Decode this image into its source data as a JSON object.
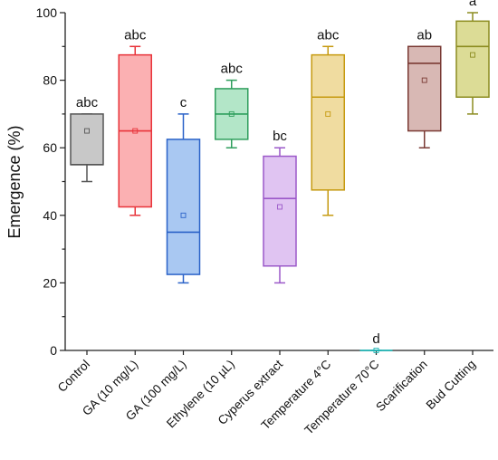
{
  "chart_data": {
    "type": "box",
    "ylabel": "Emergence (%)",
    "ylim": [
      0,
      100
    ],
    "yticks": [
      0,
      20,
      40,
      60,
      80,
      100
    ],
    "categories": [
      "Control",
      "GA (10 mg/L)",
      "GA (100 mg/L)",
      "Ethylene (10 µL)",
      "Cyperus extract",
      "Temperature 4°C",
      "Temperature 70°C",
      "Scarification",
      "Bud Cutting"
    ],
    "boxes": [
      {
        "min": 50,
        "q1": 55,
        "median": 55,
        "q3": 70,
        "max": 70,
        "mean": 65,
        "letter": "abc",
        "fill": "#c8c8c8",
        "stroke": "#555555"
      },
      {
        "min": 40,
        "q1": 42.5,
        "median": 65,
        "q3": 87.5,
        "max": 90,
        "mean": 65,
        "letter": "abc",
        "fill": "#fbb0b2",
        "stroke": "#e8333a"
      },
      {
        "min": 20,
        "q1": 22.5,
        "median": 35,
        "q3": 62.5,
        "max": 70,
        "mean": 40,
        "letter": "c",
        "fill": "#a9c8f2",
        "stroke": "#2a62c8"
      },
      {
        "min": 60,
        "q1": 62.5,
        "median": 70,
        "q3": 77.5,
        "max": 80,
        "mean": 70,
        "letter": "abc",
        "fill": "#b3e6c8",
        "stroke": "#2e9e5c"
      },
      {
        "min": 20,
        "q1": 25,
        "median": 45,
        "q3": 57.5,
        "max": 60,
        "mean": 42.5,
        "letter": "bc",
        "fill": "#e0c4f2",
        "stroke": "#9b59c9"
      },
      {
        "min": 40,
        "q1": 47.5,
        "median": 75,
        "q3": 87.5,
        "max": 90,
        "mean": 70,
        "letter": "abc",
        "fill": "#f0dca0",
        "stroke": "#c69a10"
      },
      {
        "min": 0,
        "q1": 0,
        "median": 0,
        "q3": 0,
        "max": 0,
        "mean": 0,
        "letter": "d",
        "fill": "#b8ecec",
        "stroke": "#22b6b6"
      },
      {
        "min": 60,
        "q1": 65,
        "median": 85,
        "q3": 90,
        "max": 90,
        "mean": 80,
        "letter": "ab",
        "fill": "#d8b8b4",
        "stroke": "#7a3a34"
      },
      {
        "min": 70,
        "q1": 75,
        "median": 90,
        "q3": 97.5,
        "max": 100,
        "mean": 87.5,
        "letter": "a",
        "fill": "#dcdc96",
        "stroke": "#8c8c20"
      }
    ]
  }
}
